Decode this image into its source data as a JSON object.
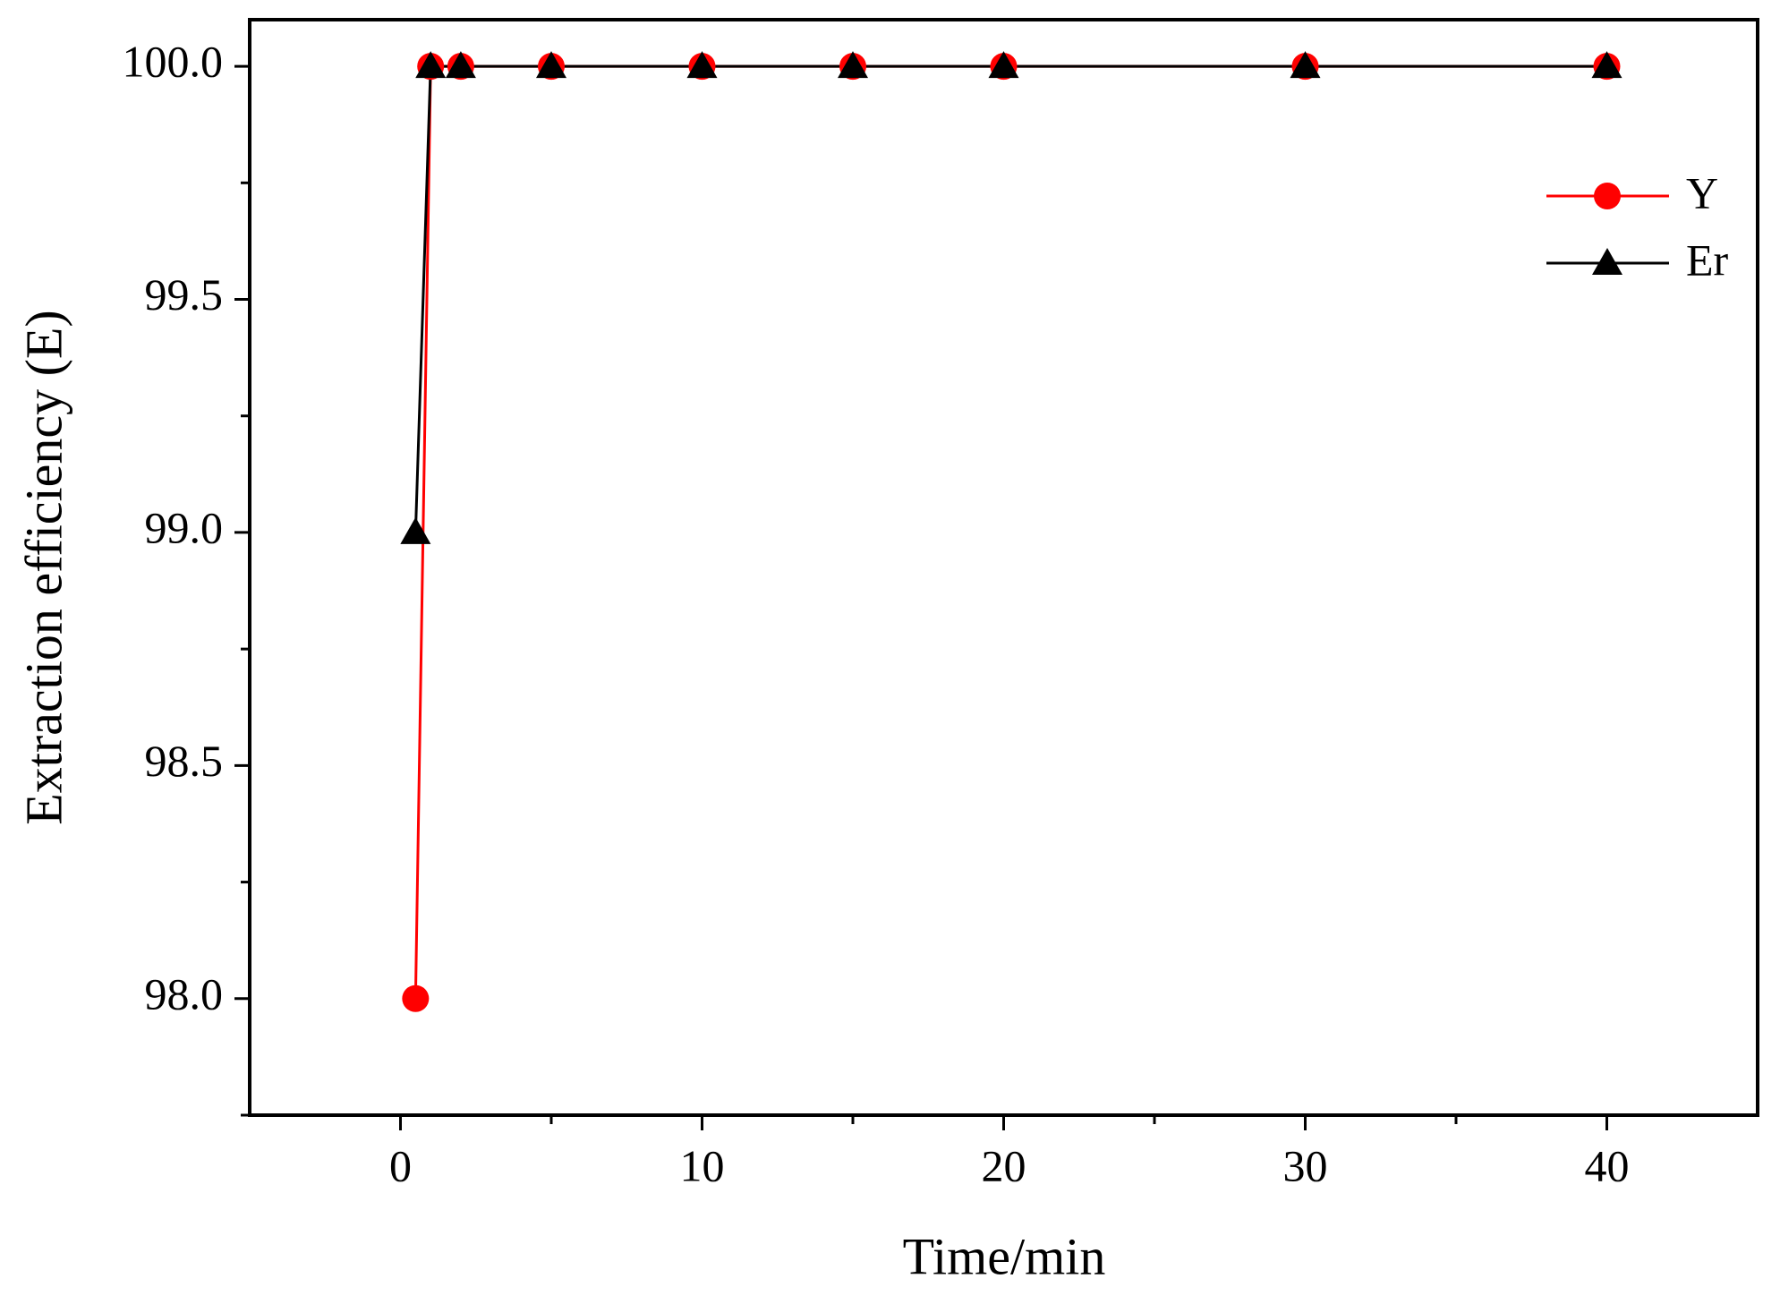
{
  "chart_data": {
    "type": "line",
    "x_label": "Time/min",
    "y_label": "Extraction efficiency (E)",
    "x": [
      0.5,
      1,
      2,
      5,
      10,
      15,
      20,
      30,
      40
    ],
    "series": [
      {
        "name": "Y",
        "color": "#ff0000",
        "marker": "circle",
        "values": [
          98,
          100,
          100,
          100,
          100,
          100,
          100,
          100,
          100
        ]
      },
      {
        "name": "Er",
        "color": "#000000",
        "marker": "triangle",
        "values": [
          99,
          100,
          100,
          100,
          100,
          100,
          100,
          100,
          100
        ]
      }
    ],
    "xlim": [
      -5,
      45
    ],
    "xticks": [
      0,
      10,
      20,
      30,
      40
    ],
    "ylim": [
      97.75,
      100.1
    ],
    "yticks": [
      {
        "value": 98,
        "label": "98.0"
      },
      {
        "value": 98.5,
        "label": "98.5"
      },
      {
        "value": 99,
        "label": "99.0"
      },
      {
        "value": 99.5,
        "label": "99.5"
      },
      {
        "value": 100,
        "label": "100.0"
      }
    ],
    "grid": false,
    "legend": "upper right"
  }
}
